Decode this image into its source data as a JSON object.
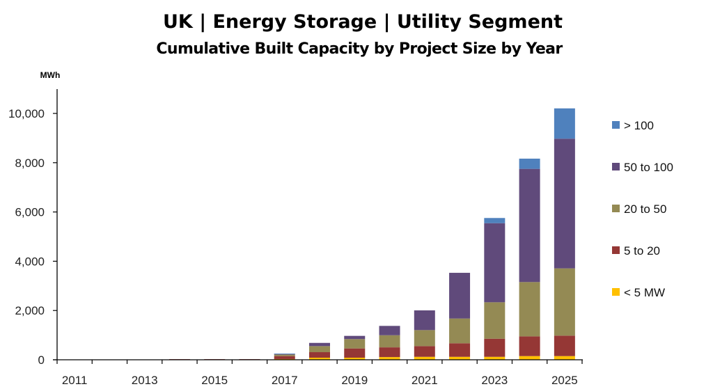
{
  "chart_data": {
    "type": "bar",
    "stacked": true,
    "title": "UK | Energy Storage | Utility Segment",
    "subtitle": "Cumulative Built Capacity by Project Size by Year",
    "ylabel": "MWh",
    "xlabel": "",
    "ylim": [
      0,
      11000
    ],
    "yticks": [
      0,
      2000,
      4000,
      6000,
      8000,
      10000
    ],
    "ytick_labels": [
      "0",
      "2,000",
      "4,000",
      "6,000",
      "8,000",
      "10,000"
    ],
    "categories": [
      "2011",
      "2012",
      "2013",
      "2014",
      "2015",
      "2016",
      "2017",
      "2018",
      "2019",
      "2020",
      "2021",
      "2022",
      "2023",
      "2024",
      "2025"
    ],
    "xtick_labels_shown": [
      "2011",
      "2013",
      "2015",
      "2017",
      "2019",
      "2021",
      "2023",
      "2025"
    ],
    "grid": false,
    "legend_position": "right",
    "series": [
      {
        "name": "< 5 MW",
        "color": "#FFC000",
        "values": [
          0,
          0,
          0,
          0,
          0,
          0,
          30,
          85,
          85,
          110,
          120,
          120,
          120,
          150,
          150
        ]
      },
      {
        "name": "5 to 20",
        "color": "#953735",
        "values": [
          0,
          0,
          0,
          25,
          25,
          25,
          120,
          225,
          375,
          395,
          435,
          550,
          735,
          800,
          830
        ]
      },
      {
        "name": "20 to 50",
        "color": "#948A54",
        "values": [
          0,
          0,
          0,
          0,
          0,
          0,
          60,
          245,
          380,
          490,
          650,
          1005,
          1480,
          2205,
          2730
        ]
      },
      {
        "name": "50 to 100",
        "color": "#604A7B",
        "values": [
          0,
          0,
          0,
          0,
          0,
          0,
          30,
          130,
          130,
          380,
          800,
          1855,
          3210,
          4595,
          5265
        ]
      },
      {
        "name": "> 100",
        "color": "#4F81BD",
        "values": [
          0,
          0,
          0,
          0,
          0,
          0,
          10,
          0,
          0,
          0,
          0,
          0,
          210,
          415,
          1230
        ]
      }
    ],
    "legend_order": [
      "> 100",
      "50 to 100",
      "20 to 50",
      "5 to 20",
      "< 5 MW"
    ]
  }
}
